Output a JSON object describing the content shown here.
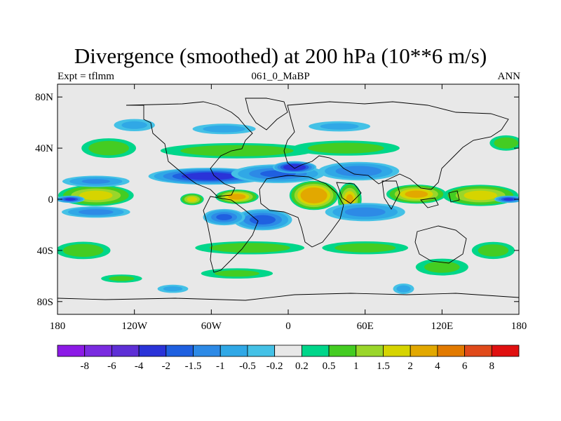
{
  "chart_data": {
    "type": "heatmap",
    "title": "Divergence (smoothed) at 200 hPa (10**6 m/s)",
    "subtitle_left": "Expt = tflmm",
    "subtitle_center": "061_0_MaBP",
    "subtitle_right": "ANN",
    "x_ticks": [
      {
        "value": -180,
        "label": "180"
      },
      {
        "value": -120,
        "label": "120W"
      },
      {
        "value": -60,
        "label": "60W"
      },
      {
        "value": 0,
        "label": "0"
      },
      {
        "value": 60,
        "label": "60E"
      },
      {
        "value": 120,
        "label": "120E"
      },
      {
        "value": 180,
        "label": "180"
      }
    ],
    "y_ticks": [
      {
        "value": 80,
        "label": "80N"
      },
      {
        "value": 40,
        "label": "40N"
      },
      {
        "value": 0,
        "label": "0"
      },
      {
        "value": -40,
        "label": "40S"
      },
      {
        "value": -80,
        "label": "80S"
      }
    ],
    "xlim": [
      -180,
      180
    ],
    "ylim": [
      -90,
      90
    ],
    "colorbar": {
      "colors": [
        "#8c1ae6",
        "#7a2be0",
        "#5e2fd6",
        "#2a33d8",
        "#1f60e0",
        "#2d8ae6",
        "#30a8e6",
        "#44c1e6",
        "#e8e8e8",
        "#00d68a",
        "#44cc22",
        "#9ad62a",
        "#d6d400",
        "#e2a800",
        "#e27a00",
        "#e04a1a",
        "#e01010"
      ],
      "labels": [
        "-8",
        "-6",
        "-4",
        "-2",
        "-1.5",
        "-1",
        "-0.5",
        "-0.2",
        "0.2",
        "0.5",
        "1",
        "1.5",
        "2",
        "4",
        "6",
        "8"
      ]
    },
    "field_blobs": [
      {
        "lon": -150,
        "lat": 3,
        "rlon": 32,
        "rlat": 9,
        "value": 1.8
      },
      {
        "lon": -170,
        "lat": 0,
        "rlon": 12,
        "rlat": 3,
        "value": -2.2
      },
      {
        "lon": 150,
        "lat": 3,
        "rlon": 32,
        "rlat": 9,
        "value": 1.8
      },
      {
        "lon": 172,
        "lat": 0,
        "rlon": 12,
        "rlat": 3,
        "value": -2.2
      },
      {
        "lon": -150,
        "lat": -10,
        "rlon": 30,
        "rlat": 5,
        "value": -1.2
      },
      {
        "lon": -150,
        "lat": 14,
        "rlon": 30,
        "rlat": 5,
        "value": -1.0
      },
      {
        "lon": 100,
        "lat": 4,
        "rlon": 25,
        "rlat": 8,
        "value": 2.3
      },
      {
        "lon": 20,
        "lat": 3,
        "rlon": 20,
        "rlat": 12,
        "value": 3.2
      },
      {
        "lon": 48,
        "lat": 0,
        "rlon": 10,
        "rlat": 14,
        "value": 2.0
      },
      {
        "lon": -40,
        "lat": 2,
        "rlon": 18,
        "rlat": 6,
        "value": 2.4
      },
      {
        "lon": -75,
        "lat": 0,
        "rlon": 10,
        "rlat": 5,
        "value": 1.8
      },
      {
        "lon": -62,
        "lat": 18,
        "rlon": 50,
        "rlat": 7,
        "value": -2.6
      },
      {
        "lon": -8,
        "lat": 20,
        "rlon": 40,
        "rlat": 8,
        "value": -1.6
      },
      {
        "lon": 5,
        "lat": 25,
        "rlon": 18,
        "rlat": 5,
        "value": -3.0
      },
      {
        "lon": 55,
        "lat": 22,
        "rlon": 35,
        "rlat": 8,
        "value": -1.4
      },
      {
        "lon": -20,
        "lat": -16,
        "rlon": 25,
        "rlat": 9,
        "value": -1.8
      },
      {
        "lon": -50,
        "lat": -14,
        "rlon": 18,
        "rlat": 7,
        "value": -1.6
      },
      {
        "lon": 60,
        "lat": -10,
        "rlon": 35,
        "rlat": 8,
        "value": -1.2
      },
      {
        "lon": -40,
        "lat": 38,
        "rlon": 70,
        "rlat": 7,
        "value": 0.8
      },
      {
        "lon": 45,
        "lat": 40,
        "rlon": 50,
        "rlat": 7,
        "value": 0.7
      },
      {
        "lon": -140,
        "lat": 40,
        "rlon": 25,
        "rlat": 9,
        "value": 0.8
      },
      {
        "lon": 170,
        "lat": 44,
        "rlon": 15,
        "rlat": 7,
        "value": 0.8
      },
      {
        "lon": -50,
        "lat": 55,
        "rlon": 30,
        "rlat": 5,
        "value": -0.6
      },
      {
        "lon": 40,
        "lat": 57,
        "rlon": 30,
        "rlat": 5,
        "value": -0.5
      },
      {
        "lon": -120,
        "lat": 58,
        "rlon": 20,
        "rlat": 6,
        "value": -0.5
      },
      {
        "lon": -30,
        "lat": -38,
        "rlon": 50,
        "rlat": 6,
        "value": 0.8
      },
      {
        "lon": 60,
        "lat": -38,
        "rlon": 40,
        "rlat": 6,
        "value": 0.7
      },
      {
        "lon": -160,
        "lat": -40,
        "rlon": 25,
        "rlat": 8,
        "value": 0.8
      },
      {
        "lon": 160,
        "lat": -40,
        "rlon": 20,
        "rlat": 8,
        "value": 0.7
      },
      {
        "lon": 120,
        "lat": -53,
        "rlon": 25,
        "rlat": 8,
        "value": 0.6
      },
      {
        "lon": -40,
        "lat": -58,
        "rlon": 35,
        "rlat": 5,
        "value": 0.5
      },
      {
        "lon": -130,
        "lat": -62,
        "rlon": 20,
        "rlat": 4,
        "value": 0.5
      },
      {
        "lon": 90,
        "lat": -70,
        "rlon": 10,
        "rlat": 5,
        "value": -0.6
      },
      {
        "lon": -90,
        "lat": -70,
        "rlon": 15,
        "rlat": 4,
        "value": -0.5
      }
    ]
  }
}
